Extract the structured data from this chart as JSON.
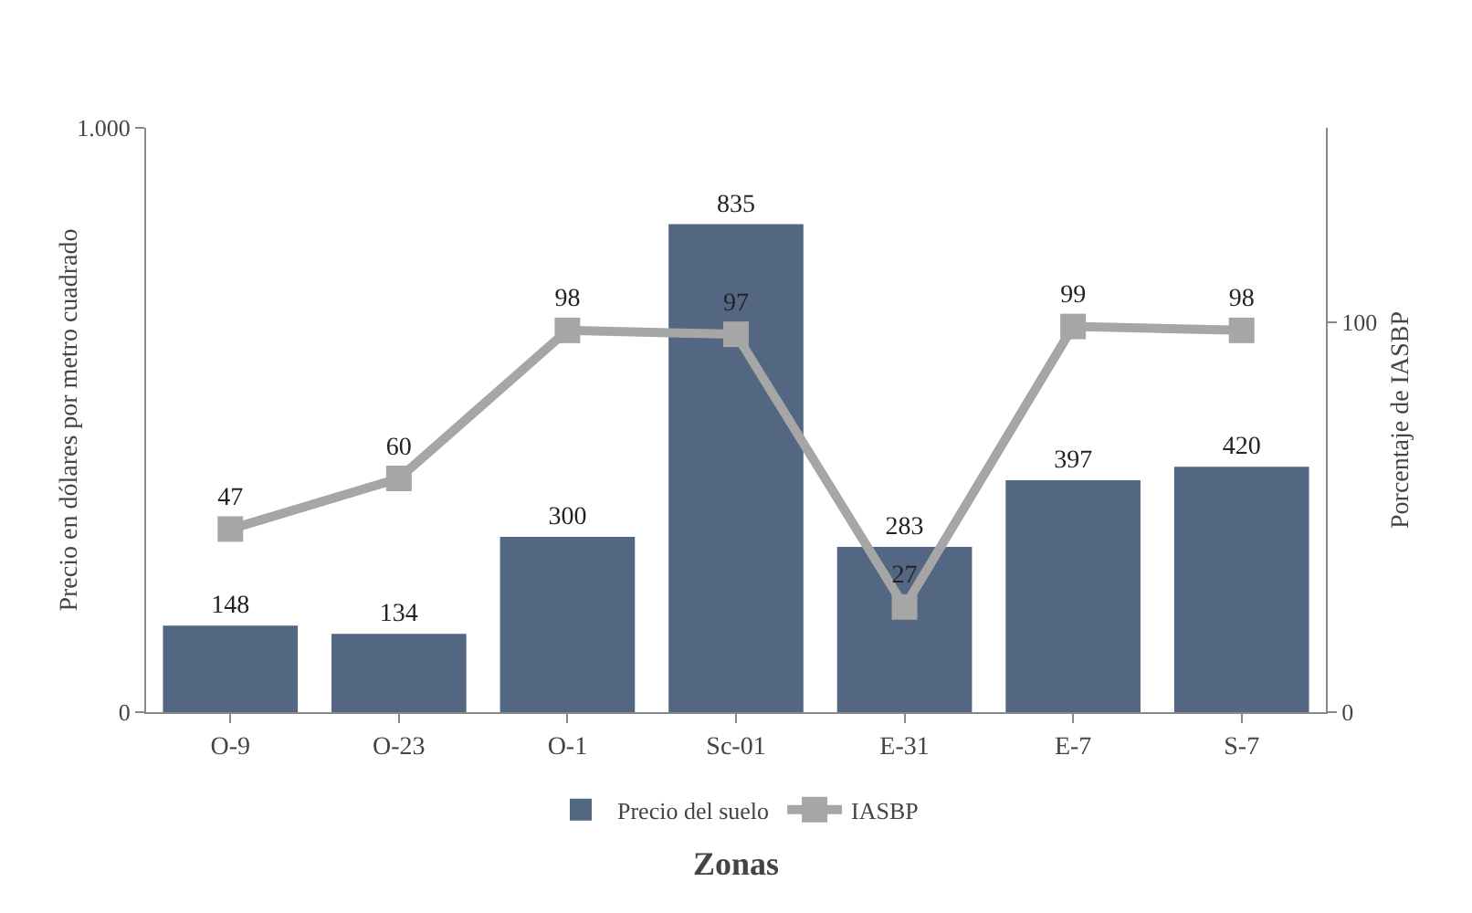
{
  "chart_data": {
    "type": "bar",
    "xlabel": "Zonas",
    "ylabel": "Precio en dólares por metro cuadrado",
    "y2label": "Porcentaje de IASBP",
    "categories": [
      "O-9",
      "O-23",
      "O-1",
      "Sc-01",
      "E-31",
      "E-7",
      "S-7"
    ],
    "series": [
      {
        "name": "Precio del suelo",
        "color": "#536783",
        "values": [
          148,
          134,
          300,
          835,
          283,
          397,
          420
        ]
      },
      {
        "name": "IASBP",
        "type": "line",
        "axis": "y2",
        "color": "#a6a6a6",
        "marker": "square",
        "values": [
          47,
          60,
          98,
          97,
          27,
          99,
          98
        ]
      }
    ],
    "ylim": [
      0,
      1000
    ],
    "yticks": [
      0,
      {
        "value": 1000,
        "label": "1.000"
      }
    ],
    "y2lim": [
      0,
      150
    ],
    "y2ticks": [
      0,
      100
    ],
    "data_labels": true,
    "grid": false,
    "legend": "bottom"
  }
}
